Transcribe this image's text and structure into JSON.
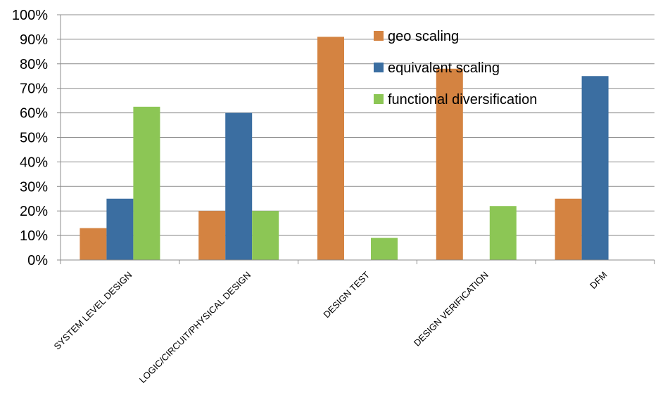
{
  "chart_data": {
    "type": "bar",
    "categories": [
      "SYSTEM LEVEL DESIGN",
      "LOGIC/CIRCUIT/PHYSICAL DESIGN",
      "DESIGN TEST",
      "DESIGN VERIFICATION",
      "DFM"
    ],
    "series": [
      {
        "name": "geo scaling",
        "color": "#d48341",
        "values": [
          13,
          20,
          91,
          78,
          25
        ]
      },
      {
        "name": "equivalent scaling",
        "color": "#3b6ea1",
        "values": [
          25,
          60,
          0,
          0,
          75
        ]
      },
      {
        "name": "functional diversification",
        "color": "#8cc655",
        "values": [
          62.5,
          20,
          9,
          22,
          0
        ]
      }
    ],
    "ylim": [
      0,
      100
    ],
    "y_ticks": [
      0,
      10,
      20,
      30,
      40,
      50,
      60,
      70,
      80,
      90,
      100
    ],
    "y_tick_labels": [
      "0%",
      "10%",
      "20%",
      "30%",
      "40%",
      "50%",
      "60%",
      "70%",
      "80%",
      "90%",
      "100%"
    ],
    "title": "",
    "xlabel": "",
    "ylabel": "",
    "grid": true,
    "legend_position": "top-right"
  }
}
